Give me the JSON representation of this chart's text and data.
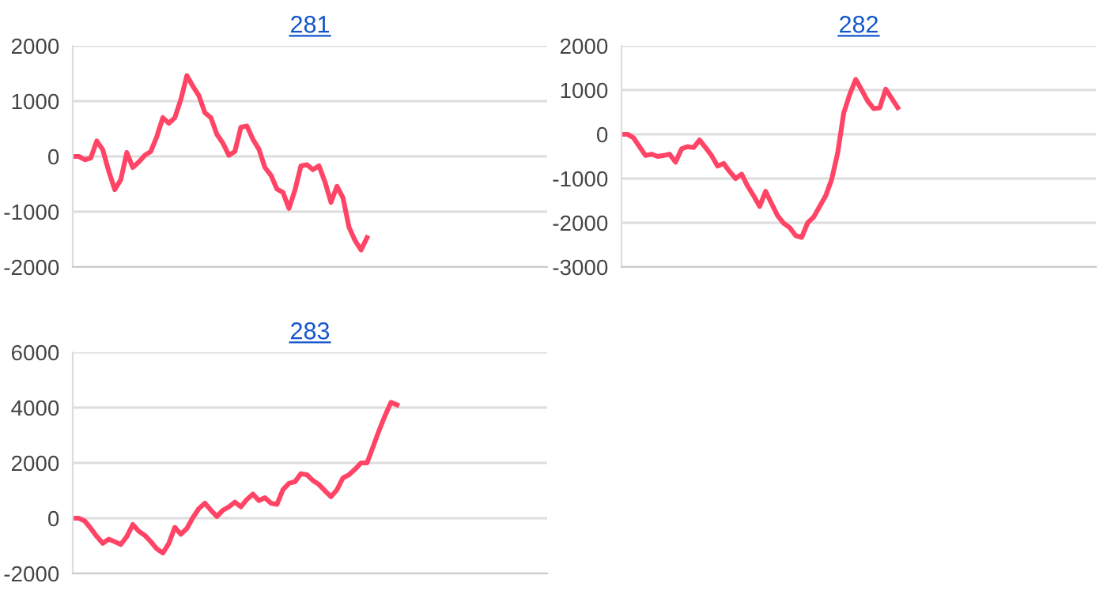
{
  "chart_data": [
    {
      "type": "line",
      "title": "281",
      "categories": [
        null,
        null,
        null,
        null,
        null,
        null,
        null,
        null,
        null,
        null,
        null,
        null,
        null,
        null,
        null,
        null,
        null,
        null,
        null,
        null,
        null,
        null,
        null,
        null,
        null,
        null,
        null,
        null,
        null,
        null,
        null,
        null,
        null,
        null,
        null,
        null,
        null,
        null,
        null,
        null,
        null,
        null,
        null,
        null,
        null,
        null,
        null,
        null,
        null,
        null,
        null,
        null,
        null,
        null,
        null,
        null,
        null,
        null,
        null,
        null,
        null,
        null,
        null,
        null,
        null,
        null,
        null,
        null,
        null,
        null,
        null,
        null,
        null,
        null,
        null,
        null,
        null,
        null,
        null,
        null
      ],
      "series": [
        {
          "color": "#ff4466",
          "values": [
            0,
            0,
            -60,
            -30,
            280,
            120,
            -270,
            -600,
            -420,
            70,
            -200,
            -100,
            20,
            90,
            360,
            700,
            600,
            700,
            1030,
            1460,
            1270,
            1100,
            790,
            700,
            400,
            240,
            20,
            90,
            530,
            550,
            310,
            130,
            -200,
            -340,
            -590,
            -650,
            -940,
            -610,
            -170,
            -150,
            -240,
            -170,
            -460,
            -830,
            -540,
            -750,
            -1280,
            -1520,
            -1690,
            -1470,
            null,
            null,
            null,
            null,
            null,
            null,
            null,
            null,
            null,
            null,
            null,
            null,
            null,
            null,
            null,
            null,
            null,
            null,
            null,
            null,
            null,
            null,
            null,
            null,
            null,
            null,
            null,
            null,
            null,
            null
          ]
        }
      ],
      "ylim": [
        -2000,
        2000
      ],
      "yticks": [
        -2000,
        -1000,
        0,
        1000,
        2000
      ],
      "grid": "y",
      "tick_labels": "y",
      "marker": "none",
      "line_style": "solid"
    },
    {
      "type": "line",
      "title": "282",
      "categories": [
        null,
        null,
        null,
        null,
        null,
        null,
        null,
        null,
        null,
        null,
        null,
        null,
        null,
        null,
        null,
        null,
        null,
        null,
        null,
        null,
        null,
        null,
        null,
        null,
        null,
        null,
        null,
        null,
        null,
        null,
        null,
        null,
        null,
        null,
        null,
        null,
        null,
        null,
        null,
        null,
        null,
        null,
        null,
        null,
        null,
        null,
        null,
        null,
        null,
        null,
        null,
        null,
        null,
        null,
        null,
        null,
        null,
        null,
        null,
        null,
        null,
        null,
        null,
        null,
        null,
        null,
        null,
        null,
        null,
        null,
        null,
        null,
        null,
        null,
        null,
        null,
        null,
        null,
        null,
        null
      ],
      "series": [
        {
          "color": "#ff4466",
          "values": [
            0,
            0,
            -80,
            -280,
            -480,
            -450,
            -500,
            -480,
            -450,
            -630,
            -330,
            -280,
            -300,
            -130,
            -300,
            -480,
            -720,
            -660,
            -840,
            -1000,
            -900,
            -1170,
            -1390,
            -1630,
            -1290,
            -1570,
            -1840,
            -2010,
            -2110,
            -2290,
            -2330,
            -2000,
            -1870,
            -1630,
            -1390,
            -1020,
            -420,
            480,
            900,
            1240,
            1000,
            750,
            580,
            600,
            1020,
            810,
            600,
            null,
            null,
            null,
            null,
            null,
            null,
            null,
            null,
            null,
            null,
            null,
            null,
            null,
            null,
            null,
            null,
            null,
            null,
            null,
            null,
            null,
            null,
            null,
            null,
            null,
            null,
            null,
            null,
            null,
            null,
            null,
            null,
            null
          ]
        }
      ],
      "ylim": [
        -3000,
        2000
      ],
      "yticks": [
        -3000,
        -2000,
        -1000,
        0,
        1000,
        2000
      ],
      "grid": "y",
      "tick_labels": "y",
      "marker": "none",
      "line_style": "solid"
    },
    {
      "type": "line",
      "title": "283",
      "categories": [
        null,
        null,
        null,
        null,
        null,
        null,
        null,
        null,
        null,
        null,
        null,
        null,
        null,
        null,
        null,
        null,
        null,
        null,
        null,
        null,
        null,
        null,
        null,
        null,
        null,
        null,
        null,
        null,
        null,
        null,
        null,
        null,
        null,
        null,
        null,
        null,
        null,
        null,
        null,
        null,
        null,
        null,
        null,
        null,
        null,
        null,
        null,
        null,
        null,
        null,
        null,
        null,
        null,
        null,
        null,
        null,
        null,
        null,
        null,
        null,
        null,
        null,
        null,
        null,
        null,
        null,
        null,
        null,
        null,
        null,
        null,
        null,
        null,
        null,
        null,
        null,
        null,
        null,
        null,
        null
      ],
      "series": [
        {
          "color": "#ff4466",
          "values": [
            0,
            0,
            -100,
            -370,
            -660,
            -910,
            -760,
            -850,
            -950,
            -660,
            -230,
            -470,
            -620,
            -850,
            -1110,
            -1260,
            -910,
            -330,
            -580,
            -370,
            20,
            350,
            540,
            290,
            60,
            290,
            410,
            580,
            410,
            680,
            870,
            640,
            740,
            540,
            500,
            1030,
            1260,
            1320,
            1610,
            1570,
            1360,
            1220,
            990,
            780,
            1030,
            1460,
            1570,
            1770,
            2000,
            2000,
            2580,
            3170,
            3710,
            4190,
            4100,
            null,
            null,
            null,
            null,
            null,
            null,
            null,
            null,
            null,
            null,
            null,
            null,
            null,
            null,
            null,
            null,
            null,
            null,
            null,
            null,
            null,
            null,
            null,
            null,
            null
          ]
        }
      ],
      "ylim": [
        -2000,
        6000
      ],
      "yticks": [
        -2000,
        0,
        2000,
        4000,
        6000
      ],
      "grid": "y",
      "tick_labels": "y",
      "marker": "none",
      "line_style": "solid"
    }
  ]
}
